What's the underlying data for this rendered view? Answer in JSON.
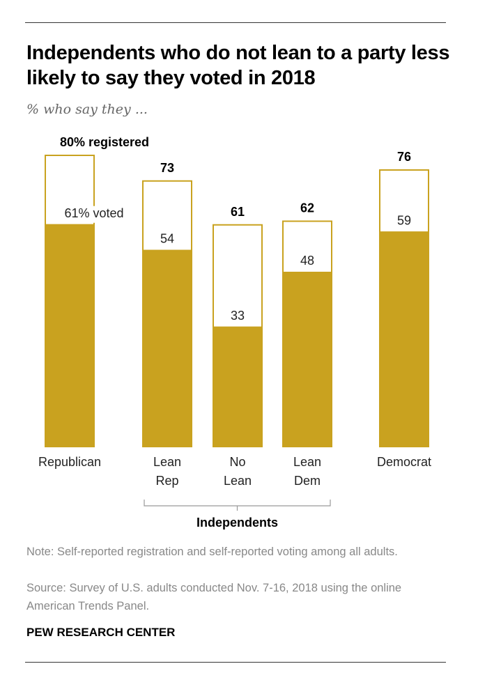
{
  "title": "Independents who do not lean to a party less likely to say they voted in 2018",
  "subtitle": "% who say they ...",
  "chart_data": {
    "type": "bar",
    "categories": [
      [
        "Republican"
      ],
      [
        "Lean",
        "Rep"
      ],
      [
        "No",
        "Lean"
      ],
      [
        "Lean",
        "Dem"
      ],
      [
        "Democrat"
      ]
    ],
    "series": [
      {
        "name": "registered",
        "values": [
          80,
          73,
          61,
          62,
          76
        ]
      },
      {
        "name": "voted",
        "values": [
          61,
          54,
          33,
          48,
          59
        ]
      }
    ],
    "first_labels": {
      "registered": "80% registered",
      "voted": "61% voted"
    },
    "group_label": "Independents",
    "group_members": [
      1,
      2,
      3
    ],
    "ylim": [
      0,
      80
    ],
    "colors": {
      "voted": "#C9A21F",
      "registered_outline": "#C9A21F",
      "registered_fill": "#ffffff"
    },
    "grid": false,
    "legend": "none"
  },
  "note": "Note: Self-reported registration and self-reported voting among all adults.",
  "source": "Source: Survey of U.S. adults conducted Nov. 7-16, 2018 using the online American Trends Panel.",
  "brand": "PEW RESEARCH CENTER"
}
